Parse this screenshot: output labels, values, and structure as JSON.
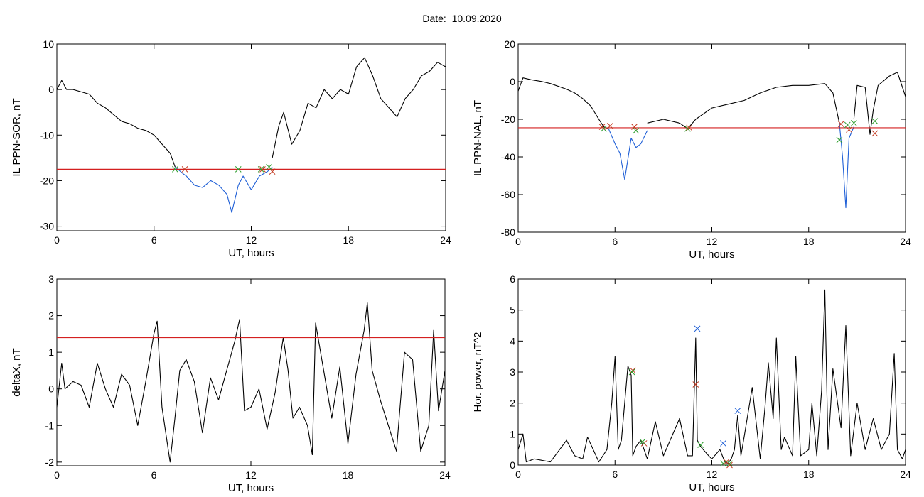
{
  "page": {
    "title": "Date:  10.09.2020"
  },
  "chart_data": [
    {
      "type": "line",
      "xlabel": "UT, hours",
      "ylabel": "IL PPN-SOR, nT",
      "xlim": [
        0,
        24
      ],
      "ylim": [
        -31,
        10
      ],
      "xticks": [
        0,
        6,
        12,
        18,
        24
      ],
      "yticks": [
        10,
        0,
        -10,
        -20,
        -30
      ],
      "threshold": -17.5,
      "series": [
        {
          "color": "#000000",
          "x": [
            0,
            0.3,
            0.6,
            1,
            1.5,
            2,
            2.5,
            3,
            3.5,
            4,
            4.5,
            5,
            5.5,
            6,
            6.5,
            7,
            7.3
          ],
          "y": [
            0,
            2,
            0,
            0,
            -0.5,
            -1,
            -3,
            -4,
            -5.5,
            -7,
            -7.5,
            -8.5,
            -9,
            -10,
            -12,
            -14,
            -17
          ]
        },
        {
          "color": "#1f5fd6",
          "x": [
            7.3,
            7.8,
            8,
            8.5,
            9,
            9.5,
            10,
            10.5,
            10.8,
            11.2,
            11.5,
            12,
            12.5,
            13,
            13.3
          ],
          "y": [
            -17,
            -18.5,
            -19,
            -21,
            -21.5,
            -20,
            -21,
            -23,
            -27,
            -21,
            -19,
            -22,
            -19,
            -18,
            -17
          ]
        },
        {
          "color": "#000000",
          "x": [
            13.3,
            13.7,
            14,
            14.5,
            15,
            15.5,
            16,
            16.5,
            17,
            17.5,
            18,
            18.5,
            19,
            19.5,
            20,
            20.5,
            21,
            21.5,
            22,
            22.5,
            23,
            23.5,
            24
          ],
          "y": [
            -15,
            -8,
            -5,
            -12,
            -9,
            -3,
            -4,
            0,
            -2,
            0,
            -1,
            5,
            7,
            3,
            -2,
            -4,
            -6,
            -2,
            0,
            3,
            4,
            6,
            5
          ]
        }
      ],
      "markers": [
        {
          "color": "#2e9e2e",
          "x": [
            7.3,
            11.2,
            12.6,
            13.1
          ],
          "y": [
            -17.5,
            -17.5,
            -17.5,
            -17
          ]
        },
        {
          "color": "#c23b22",
          "x": [
            7.9,
            12.7,
            13.3
          ],
          "y": [
            -17.5,
            -17.5,
            -18
          ]
        }
      ]
    },
    {
      "type": "line",
      "xlabel": "UT, hours",
      "ylabel": "IL PPN-NAL, nT",
      "xlim": [
        0,
        24
      ],
      "ylim": [
        -80,
        20
      ],
      "xticks": [
        0,
        6,
        12,
        18,
        24
      ],
      "yticks": [
        20,
        0,
        -20,
        -40,
        -60,
        -80
      ],
      "threshold": -24.5,
      "series": [
        {
          "color": "#000000",
          "x": [
            0,
            0.3,
            0.8,
            1.5,
            2,
            3,
            3.5,
            4,
            4.5,
            5,
            5.3,
            5.6
          ],
          "y": [
            -5,
            2,
            1,
            0,
            -1,
            -4,
            -6,
            -9,
            -13,
            -20,
            -24,
            -25
          ]
        },
        {
          "color": "#1f5fd6",
          "x": [
            5.6,
            6,
            6.3,
            6.6,
            7,
            7.3,
            7.6,
            8
          ],
          "y": [
            -25,
            -33,
            -38,
            -52,
            -30,
            -35,
            -33,
            -26
          ]
        },
        {
          "color": "#000000",
          "x": [
            8,
            9,
            10,
            10.5,
            11,
            12,
            13,
            14,
            15,
            16,
            17,
            18,
            19,
            19.5,
            19.9
          ],
          "y": [
            -22,
            -20,
            -22,
            -25,
            -20,
            -14,
            -12,
            -10,
            -6,
            -3,
            -2,
            -2,
            -1,
            -6,
            -22
          ]
        },
        {
          "color": "#1f5fd6",
          "x": [
            19.9,
            20.1,
            20.3,
            20.5,
            20.8
          ],
          "y": [
            -22,
            -40,
            -67,
            -30,
            -24
          ]
        },
        {
          "color": "#000000",
          "x": [
            20.8,
            21,
            21.5,
            21.8,
            22,
            22.3,
            23,
            23.5,
            24
          ],
          "y": [
            -20,
            -2,
            -3,
            -28,
            -15,
            -2,
            3,
            5,
            -8
          ]
        }
      ],
      "markers": [
        {
          "color": "#2e9e2e",
          "x": [
            5.3,
            7.3,
            10.5,
            19.9,
            20.4,
            20.8,
            22.1
          ],
          "y": [
            -25,
            -26,
            -25,
            -31,
            -23,
            -22,
            -21
          ]
        },
        {
          "color": "#c23b22",
          "x": [
            5.2,
            5.7,
            7.2,
            10.6,
            20,
            20.5,
            22.1
          ],
          "y": [
            -24,
            -23.5,
            -24,
            -24.5,
            -22.5,
            -25.5,
            -27.5
          ]
        }
      ]
    },
    {
      "type": "line",
      "xlabel": "UT, hours",
      "ylabel": "deltaX, nT",
      "xlim": [
        0,
        24
      ],
      "ylim": [
        -2.1,
        3
      ],
      "xticks": [
        0,
        6,
        12,
        18,
        24
      ],
      "yticks": [
        3,
        2,
        1,
        0,
        -1,
        -2
      ],
      "threshold": 1.4,
      "series": [
        {
          "color": "#000000",
          "x": [
            0,
            0.3,
            0.5,
            1,
            1.5,
            2,
            2.5,
            3,
            3.5,
            4,
            4.5,
            5,
            5.5,
            6,
            6.2,
            6.5,
            7,
            7.3,
            7.6,
            8,
            8.5,
            9,
            9.5,
            10,
            10.5,
            11,
            11.3,
            11.6,
            12,
            12.5,
            13,
            13.5,
            14,
            14.3,
            14.6,
            15,
            15.5,
            15.8,
            16,
            16.5,
            17,
            17.5,
            18,
            18.5,
            19,
            19.2,
            19.5,
            20,
            20.5,
            21,
            21.5,
            22,
            22.5,
            23,
            23.3,
            23.6,
            24
          ],
          "y": [
            -0.5,
            0.7,
            0,
            0.2,
            0.1,
            -0.5,
            0.7,
            0,
            -0.5,
            0.4,
            0.1,
            -1,
            0.2,
            1.5,
            1.85,
            -0.5,
            -2,
            -0.8,
            0.5,
            0.8,
            0.2,
            -1.2,
            0.3,
            -0.3,
            0.5,
            1.3,
            1.9,
            -0.6,
            -0.5,
            0,
            -1.1,
            -0.1,
            1.4,
            0.5,
            -0.8,
            -0.5,
            -1,
            -1.8,
            1.8,
            0.5,
            -0.8,
            0.6,
            -1.5,
            0.4,
            1.6,
            2.35,
            0.5,
            -0.3,
            -1,
            -1.7,
            1,
            0.8,
            -1.7,
            -1,
            1.6,
            -0.6,
            0.5
          ]
        }
      ],
      "markers": []
    },
    {
      "type": "line",
      "xlabel": "UT, hours",
      "ylabel": "Hor. power, nT^2",
      "xlim": [
        0,
        24
      ],
      "ylim": [
        0,
        6
      ],
      "xticks": [
        0,
        6,
        12,
        18,
        24
      ],
      "yticks": [
        6,
        5,
        4,
        3,
        2,
        1,
        0
      ],
      "threshold": null,
      "series": [
        {
          "color": "#000000",
          "x": [
            0,
            0.3,
            0.5,
            1,
            2,
            3,
            3.5,
            4,
            4.3,
            5,
            5.5,
            5.8,
            6,
            6.2,
            6.4,
            6.8,
            7,
            7.1,
            7.3,
            7.6,
            8,
            8.5,
            9,
            10,
            10.5,
            10.8,
            11,
            11.1,
            11.3,
            11.8,
            12,
            12.5,
            12.8,
            13,
            13.2,
            13.4,
            13.6,
            13.8,
            14,
            14.5,
            15,
            15.3,
            15.5,
            15.8,
            16,
            16.3,
            16.5,
            17,
            17.2,
            17.5,
            18,
            18.2,
            18.5,
            18.8,
            19,
            19.2,
            19.5,
            20,
            20.3,
            20.6,
            21,
            21.5,
            22,
            22.5,
            23,
            23.3,
            23.5,
            23.8,
            24
          ],
          "y": [
            0.5,
            1,
            0.1,
            0.2,
            0.1,
            0.8,
            0.3,
            0.2,
            0.9,
            0.1,
            0.5,
            2,
            3.5,
            0.5,
            0.8,
            3.2,
            2.9,
            0.3,
            0.6,
            0.8,
            0.2,
            1.4,
            0.3,
            1.5,
            0.3,
            0.3,
            4.1,
            0.8,
            0.6,
            0.3,
            0.2,
            0.5,
            0.1,
            0.05,
            0.2,
            0.5,
            1.6,
            0.3,
            0.9,
            2.5,
            0.2,
            1.9,
            3.3,
            1.5,
            4.1,
            0.5,
            0.9,
            0.3,
            3.5,
            0.3,
            0.5,
            2,
            0.3,
            2.4,
            5.65,
            0.5,
            3.1,
            1.2,
            4.5,
            0.3,
            2,
            0.5,
            1.5,
            0.5,
            1,
            3.6,
            0.5,
            0.2,
            0.5
          ]
        }
      ],
      "markers": [
        {
          "color": "#1f5fd6",
          "x": [
            11.1,
            12.7,
            13.6
          ],
          "y": [
            4.4,
            0.7,
            1.75
          ]
        },
        {
          "color": "#c23b22",
          "x": [
            7.1,
            7.8,
            11,
            12.9,
            13.1
          ],
          "y": [
            3.05,
            0.7,
            2.6,
            0.1,
            0
          ]
        },
        {
          "color": "#2e9e2e",
          "x": [
            7.05,
            7.7,
            11.3,
            12.7,
            13.1
          ],
          "y": [
            3,
            0.75,
            0.65,
            0.05,
            0.05
          ]
        }
      ]
    }
  ]
}
